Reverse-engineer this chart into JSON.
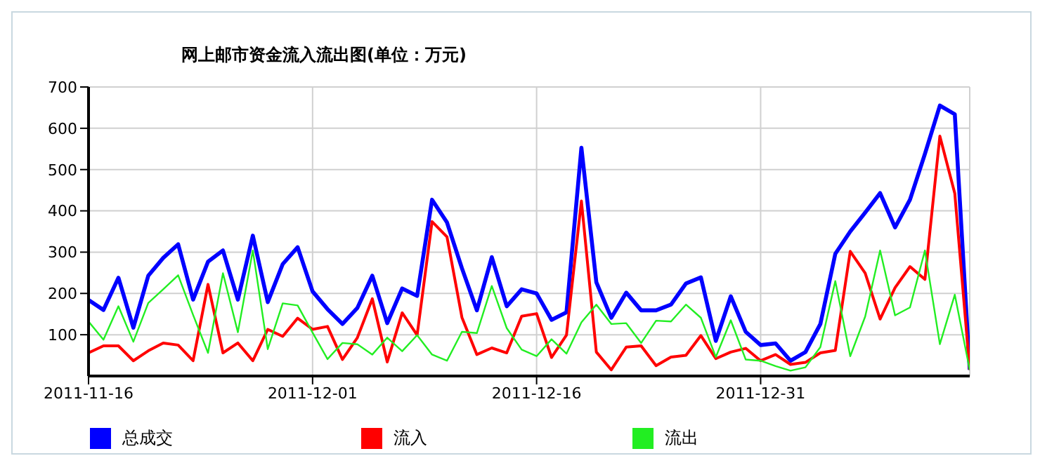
{
  "chart_data": {
    "type": "line",
    "title": "网上邮市资金流入流出图(单位：万元)",
    "x": [
      "2011-11-16",
      "2011-11-17",
      "2011-11-18",
      "2011-11-19",
      "2011-11-20",
      "2011-11-21",
      "2011-11-22",
      "2011-11-23",
      "2011-11-24",
      "2011-11-25",
      "2011-11-26",
      "2011-11-27",
      "2011-11-28",
      "2011-11-29",
      "2011-11-30",
      "2011-12-01",
      "2011-12-02",
      "2011-12-03",
      "2011-12-04",
      "2011-12-05",
      "2011-12-06",
      "2011-12-07",
      "2011-12-08",
      "2011-12-09",
      "2011-12-10",
      "2011-12-11",
      "2011-12-12",
      "2011-12-13",
      "2011-12-14",
      "2011-12-15",
      "2011-12-16",
      "2011-12-17",
      "2011-12-18",
      "2011-12-19",
      "2011-12-20",
      "2011-12-21",
      "2011-12-22",
      "2011-12-23",
      "2011-12-24",
      "2011-12-25",
      "2011-12-26",
      "2011-12-27",
      "2011-12-28",
      "2011-12-29",
      "2011-12-30",
      "2011-12-31",
      "2012-01-01",
      "2012-01-02",
      "2012-01-03",
      "2012-01-04",
      "2012-01-05",
      "2012-01-06",
      "2012-01-07",
      "2012-01-08",
      "2012-01-09",
      "2012-01-10",
      "2012-01-11",
      "2012-01-12",
      "2012-01-13",
      "2012-01-14"
    ],
    "series": [
      {
        "name": "总成交",
        "color": "#0000ff",
        "values": [
          184,
          160,
          238,
          117,
          243,
          286,
          319,
          185,
          277,
          304,
          185,
          340,
          179,
          271,
          312,
          205,
          162,
          126,
          165,
          243,
          128,
          212,
          194,
          427,
          372,
          261,
          159,
          288,
          169,
          210,
          200,
          136,
          154,
          553,
          227,
          141,
          202,
          159,
          159,
          173,
          224,
          239,
          85,
          193,
          107,
          75,
          79,
          37,
          58,
          126,
          296,
          350,
          396,
          443,
          360,
          427,
          538,
          655,
          634,
          15
        ]
      },
      {
        "name": "流入",
        "color": "#ff0000",
        "values": [
          56,
          73,
          73,
          37,
          61,
          80,
          75,
          37,
          222,
          56,
          80,
          37,
          113,
          96,
          140,
          113,
          120,
          40,
          93,
          187,
          34,
          153,
          99,
          374,
          337,
          142,
          52,
          68,
          56,
          145,
          151,
          45,
          99,
          424,
          58,
          15,
          70,
          73,
          25,
          46,
          50,
          98,
          42,
          58,
          67,
          37,
          52,
          28,
          33,
          56,
          62,
          302,
          249,
          138,
          214,
          265,
          234,
          581,
          442,
          15
        ]
      },
      {
        "name": "流出",
        "color": "#22ee22",
        "values": [
          132,
          88,
          169,
          83,
          177,
          210,
          244,
          148,
          56,
          249,
          106,
          304,
          65,
          176,
          171,
          105,
          41,
          80,
          77,
          52,
          93,
          60,
          99,
          52,
          37,
          107,
          104,
          218,
          116,
          64,
          48,
          89,
          54,
          130,
          173,
          126,
          128,
          80,
          134,
          132,
          173,
          141,
          46,
          135,
          40,
          37,
          24,
          13,
          21,
          70,
          230,
          48,
          144,
          304,
          147,
          166,
          304,
          77,
          197,
          15
        ]
      }
    ],
    "xlim": [
      "2011-11-16",
      "2012-01-14"
    ],
    "xticks": [
      "2011-11-16",
      "2011-12-01",
      "2011-12-16",
      "2011-12-31"
    ],
    "ylim": [
      0,
      700
    ],
    "yticks": [
      100,
      200,
      300,
      400,
      500,
      600,
      700
    ],
    "grid": true,
    "legend": "bottom",
    "marker": "none",
    "line_style": "solid"
  }
}
